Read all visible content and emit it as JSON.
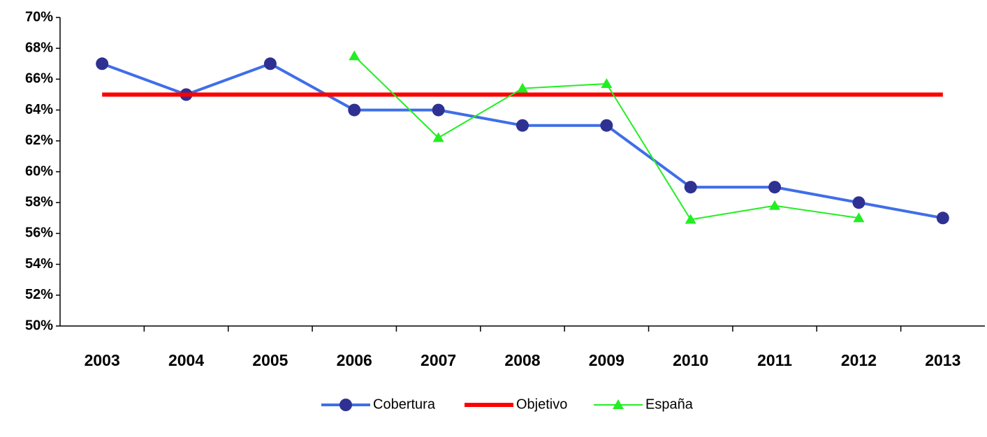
{
  "chart_data": {
    "type": "line",
    "categories": [
      "2003",
      "2004",
      "2005",
      "2006",
      "2007",
      "2008",
      "2009",
      "2010",
      "2011",
      "2012",
      "2013"
    ],
    "series": [
      {
        "name": "Cobertura",
        "color": "#3f6ee8",
        "marker_color": "#2e3192",
        "marker": "circle",
        "values": [
          67,
          65,
          67,
          64,
          64,
          63,
          63,
          59,
          59,
          58,
          57
        ]
      },
      {
        "name": "Objetivo",
        "color": "#ff0000",
        "marker": "none",
        "values": [
          65,
          65,
          65,
          65,
          65,
          65,
          65,
          65,
          65,
          65,
          65
        ]
      },
      {
        "name": "España",
        "color": "#22ee22",
        "marker_color": "#22ee22",
        "marker": "triangle",
        "values": [
          null,
          null,
          null,
          67.5,
          62.2,
          65.4,
          65.7,
          56.9,
          57.8,
          57.0,
          null
        ]
      }
    ],
    "ylim": [
      50,
      70
    ],
    "yticks": [
      {
        "value": 50,
        "label": "50%"
      },
      {
        "value": 52,
        "label": "52%"
      },
      {
        "value": 54,
        "label": "54%"
      },
      {
        "value": 56,
        "label": "56%"
      },
      {
        "value": 58,
        "label": "58%"
      },
      {
        "value": 60,
        "label": "60%"
      },
      {
        "value": 62,
        "label": "62%"
      },
      {
        "value": 64,
        "label": "64%"
      },
      {
        "value": 66,
        "label": "66%"
      },
      {
        "value": 68,
        "label": "68%"
      },
      {
        "value": 70,
        "label": "70%"
      }
    ],
    "legend": "bottom"
  }
}
